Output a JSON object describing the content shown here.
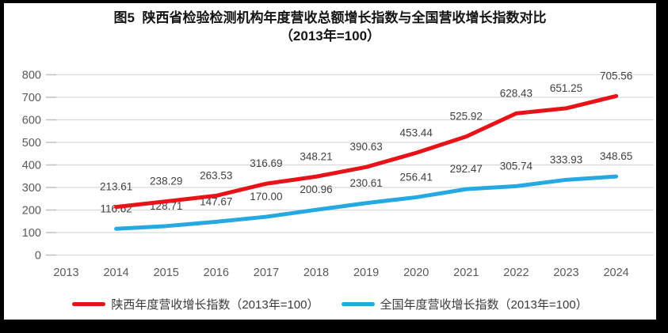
{
  "title": {
    "line1": "图5  陕西省检验检测机构年度营收总额增长指数与全国营收增长指数对比",
    "line2": "（2013年=100）"
  },
  "colors": {
    "shaanxi_line": "#e81219",
    "national_line": "#25a9e0",
    "gridline": "#d9d9d9",
    "tick": "#bfbfbf",
    "axis_text": "#595959",
    "data_label_text": "#3f3f3f",
    "frame_border": "#000000",
    "chart_background": "#ffffff"
  },
  "chart_data": {
    "type": "line",
    "categories": [
      "2013",
      "2014",
      "2015",
      "2016",
      "2017",
      "2018",
      "2019",
      "2020",
      "2021",
      "2022",
      "2023",
      "2024"
    ],
    "series": [
      {
        "name": "陕西年度营收增长指数（2013年=100）",
        "color": "#e81219",
        "values": [
          null,
          213.61,
          238.29,
          263.53,
          316.69,
          348.21,
          390.63,
          453.44,
          525.92,
          628.43,
          651.25,
          705.56
        ]
      },
      {
        "name": "全国年度营收增长指数（2013年=100）",
        "color": "#25a9e0",
        "values": [
          null,
          116.62,
          128.71,
          147.67,
          170.0,
          200.96,
          230.61,
          256.41,
          292.47,
          305.74,
          333.93,
          348.65
        ]
      }
    ],
    "ylabel": "",
    "xlabel": "",
    "ylim": [
      0,
      800
    ],
    "ytick_step": 100,
    "yticks": [
      0,
      100,
      200,
      300,
      400,
      500,
      600,
      700,
      800
    ],
    "grid": true,
    "data_labels": true,
    "label_decimals": 2,
    "legend_position": "bottom"
  }
}
